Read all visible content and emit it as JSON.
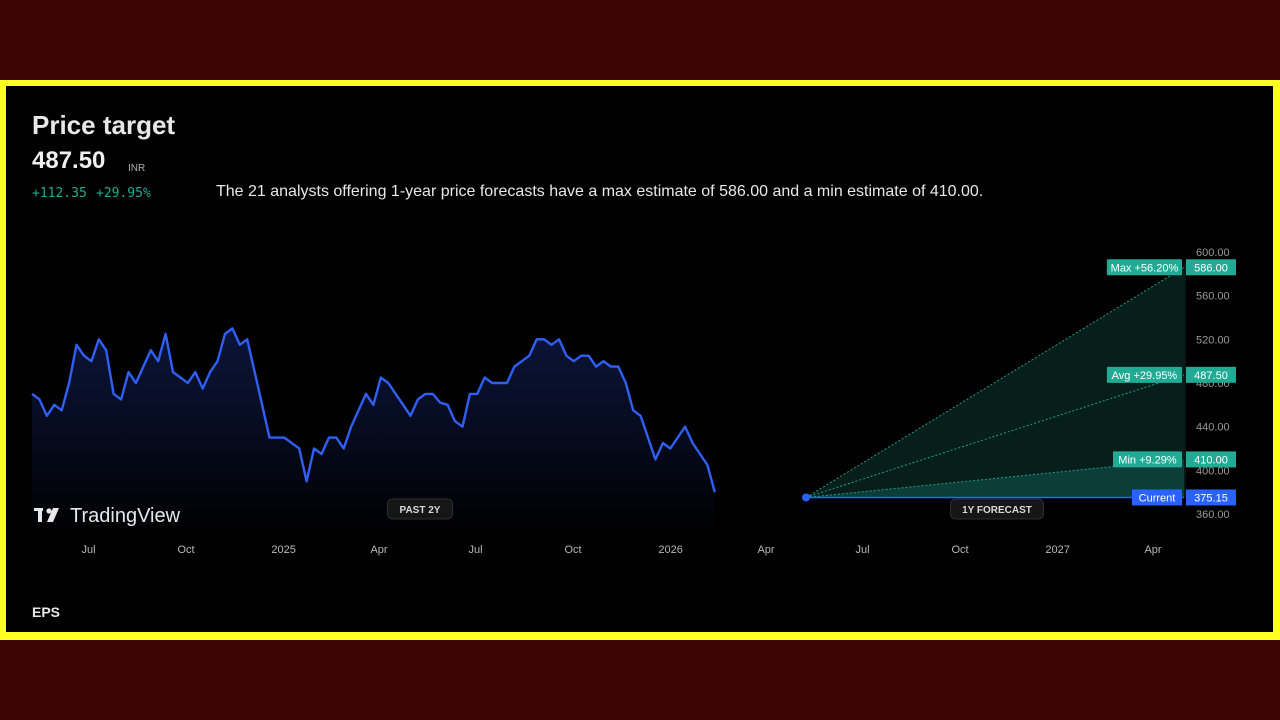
{
  "header": {
    "title": "Price target",
    "price": "487.50",
    "currency": "INR",
    "change_abs": "+112.35",
    "change_pct": "+29.95%",
    "description": "The 21 analysts offering 1-year price forecasts have a max estimate of 586.00 and a min estimate of 410.00."
  },
  "footer": {
    "tab_eps": "EPS"
  },
  "brand": {
    "logo_text": "TradingView"
  },
  "colors": {
    "line": "#2f5ff5",
    "forecast": "#22ab94",
    "current": "#2962ff",
    "background": "#000000",
    "frame": "#ffff22"
  },
  "chart_data": {
    "type": "line",
    "title": "",
    "x_tick_labels": [
      "Jul",
      "Oct",
      "2025",
      "Apr",
      "Jul",
      "Oct",
      "2026",
      "Apr",
      "Jul",
      "Oct",
      "2027",
      "Apr"
    ],
    "y_ticks": [
      600,
      560,
      520,
      480,
      440,
      400,
      360
    ],
    "y_tick_labels": [
      "600.00",
      "560.00",
      "520.00",
      "480.00",
      "440.00",
      "400.00",
      "360.00"
    ],
    "ylim": [
      360,
      600
    ],
    "section_labels": {
      "past": "PAST 2Y",
      "forecast": "1Y FORECAST"
    },
    "price_series": {
      "x_start": "2024-05-20",
      "x_step_days": 7,
      "values": [
        470,
        465,
        450,
        460,
        455,
        480,
        515,
        505,
        500,
        520,
        510,
        470,
        465,
        490,
        480,
        495,
        510,
        500,
        525,
        490,
        485,
        480,
        490,
        475,
        490,
        500,
        525,
        530,
        515,
        520,
        490,
        460,
        430,
        430,
        430,
        425,
        420,
        390,
        420,
        415,
        430,
        430,
        420,
        440,
        455,
        470,
        460,
        485,
        480,
        470,
        460,
        450,
        465,
        470,
        470,
        462,
        460,
        445,
        440,
        470,
        470,
        485,
        480,
        480,
        480,
        495,
        500,
        505,
        520,
        520,
        515,
        520,
        505,
        500,
        505,
        505,
        495,
        500,
        495,
        495,
        480,
        455,
        450,
        430,
        410,
        425,
        420,
        430,
        440,
        425,
        415,
        405,
        380
      ]
    },
    "current": {
      "label": "Current",
      "value": 375.15,
      "value_label": "375.15",
      "date": "2026-05-20"
    },
    "forecast": [
      {
        "name": "Max",
        "pct": "+56.20%",
        "value": 586.0,
        "value_label": "586.00"
      },
      {
        "name": "Avg",
        "pct": "+29.95%",
        "value": 487.5,
        "value_label": "487.50"
      },
      {
        "name": "Min",
        "pct": "+9.29%",
        "value": 410.0,
        "value_label": "410.00"
      }
    ],
    "forecast_horizon": "1Y"
  }
}
